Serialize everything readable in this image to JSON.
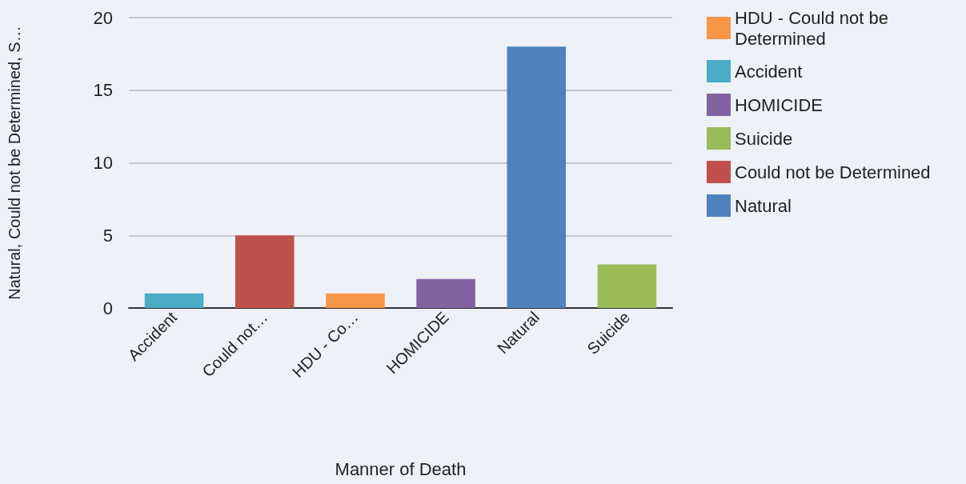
{
  "chart_data": {
    "type": "bar",
    "xlabel": "Manner of Death",
    "ylabel": "Natural, Could not be Determined, S…",
    "categories": [
      "Accident",
      "Could not…",
      "HDU - Co…",
      "HOMICIDE",
      "Natural",
      "Suicide"
    ],
    "series": [
      {
        "name": "HDU - Could not be Determined",
        "color": "#f79646",
        "values": [
          null,
          null,
          1,
          null,
          null,
          null
        ]
      },
      {
        "name": "Accident",
        "color": "#4bacc6",
        "values": [
          1,
          null,
          null,
          null,
          null,
          null
        ]
      },
      {
        "name": "HOMICIDE",
        "color": "#8064a2",
        "values": [
          null,
          null,
          null,
          2,
          null,
          null
        ]
      },
      {
        "name": "Suicide",
        "color": "#9bbb59",
        "values": [
          null,
          null,
          null,
          null,
          null,
          3
        ]
      },
      {
        "name": "Could not be Determined",
        "color": "#c0504d",
        "values": [
          null,
          5,
          null,
          null,
          null,
          null
        ]
      },
      {
        "name": "Natural",
        "color": "#4f81bd",
        "values": [
          null,
          null,
          null,
          null,
          18,
          null
        ]
      }
    ],
    "stacked": true,
    "ylim": [
      0,
      20
    ],
    "yticks": [
      0,
      5,
      10,
      15,
      20
    ],
    "grid": "y",
    "legend": "right"
  }
}
